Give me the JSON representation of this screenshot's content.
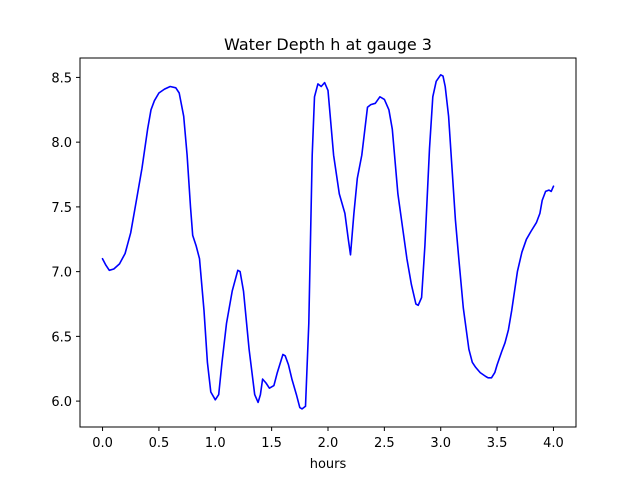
{
  "chart_data": {
    "type": "line",
    "title": "Water Depth h at gauge 3",
    "xlabel": "hours",
    "ylabel": "",
    "xlim": [
      -0.2,
      4.2
    ],
    "ylim": [
      5.8,
      8.65
    ],
    "x_ticks": [
      0.0,
      0.5,
      1.0,
      1.5,
      2.0,
      2.5,
      3.0,
      3.5,
      4.0
    ],
    "x_tick_labels": [
      "0.0",
      "0.5",
      "1.0",
      "1.5",
      "2.0",
      "2.5",
      "3.0",
      "3.5",
      "4.0"
    ],
    "y_ticks": [
      6.0,
      6.5,
      7.0,
      7.5,
      8.0,
      8.5
    ],
    "y_tick_labels": [
      "6.0",
      "6.5",
      "7.0",
      "7.5",
      "8.0",
      "8.5"
    ],
    "grid": false,
    "series": [
      {
        "color": "#0000ff",
        "x": [
          0.0,
          0.03,
          0.06,
          0.1,
          0.15,
          0.2,
          0.25,
          0.3,
          0.35,
          0.4,
          0.43,
          0.46,
          0.5,
          0.55,
          0.6,
          0.65,
          0.68,
          0.72,
          0.75,
          0.78,
          0.8,
          0.83,
          0.86,
          0.9,
          0.93,
          0.96,
          1.0,
          1.03,
          1.06,
          1.1,
          1.15,
          1.2,
          1.22,
          1.25,
          1.3,
          1.35,
          1.38,
          1.4,
          1.42,
          1.45,
          1.48,
          1.52,
          1.55,
          1.6,
          1.62,
          1.65,
          1.68,
          1.72,
          1.75,
          1.77,
          1.8,
          1.83,
          1.86,
          1.88,
          1.91,
          1.94,
          1.97,
          2.0,
          2.05,
          2.1,
          2.15,
          2.18,
          2.2,
          2.23,
          2.26,
          2.3,
          2.35,
          2.38,
          2.42,
          2.46,
          2.5,
          2.54,
          2.57,
          2.62,
          2.66,
          2.7,
          2.74,
          2.78,
          2.8,
          2.83,
          2.86,
          2.9,
          2.93,
          2.96,
          3.0,
          3.02,
          3.04,
          3.07,
          3.1,
          3.13,
          3.16,
          3.2,
          3.25,
          3.28,
          3.31,
          3.35,
          3.4,
          3.42,
          3.45,
          3.48,
          3.5,
          3.54,
          3.57,
          3.6,
          3.63,
          3.68,
          3.72,
          3.76,
          3.8,
          3.85,
          3.88,
          3.9,
          3.93,
          3.96,
          3.98,
          4.0
        ],
        "y": [
          7.1,
          7.05,
          7.01,
          7.02,
          7.06,
          7.14,
          7.3,
          7.55,
          7.8,
          8.1,
          8.25,
          8.32,
          8.38,
          8.41,
          8.43,
          8.42,
          8.38,
          8.2,
          7.9,
          7.5,
          7.28,
          7.2,
          7.1,
          6.7,
          6.3,
          6.07,
          6.01,
          6.05,
          6.3,
          6.6,
          6.85,
          7.01,
          7.0,
          6.85,
          6.4,
          6.05,
          5.99,
          6.05,
          6.17,
          6.14,
          6.1,
          6.12,
          6.22,
          6.36,
          6.35,
          6.28,
          6.17,
          6.05,
          5.95,
          5.94,
          5.96,
          6.6,
          7.9,
          8.35,
          8.45,
          8.43,
          8.46,
          8.4,
          7.9,
          7.6,
          7.45,
          7.25,
          7.13,
          7.45,
          7.72,
          7.9,
          8.27,
          8.29,
          8.3,
          8.35,
          8.33,
          8.25,
          8.1,
          7.6,
          7.35,
          7.1,
          6.9,
          6.75,
          6.74,
          6.8,
          7.2,
          7.95,
          8.35,
          8.47,
          8.52,
          8.51,
          8.43,
          8.2,
          7.8,
          7.4,
          7.1,
          6.72,
          6.4,
          6.3,
          6.26,
          6.22,
          6.19,
          6.18,
          6.18,
          6.22,
          6.28,
          6.38,
          6.45,
          6.55,
          6.7,
          7.0,
          7.15,
          7.25,
          7.31,
          7.38,
          7.45,
          7.55,
          7.62,
          7.63,
          7.62,
          7.66
        ]
      }
    ]
  }
}
